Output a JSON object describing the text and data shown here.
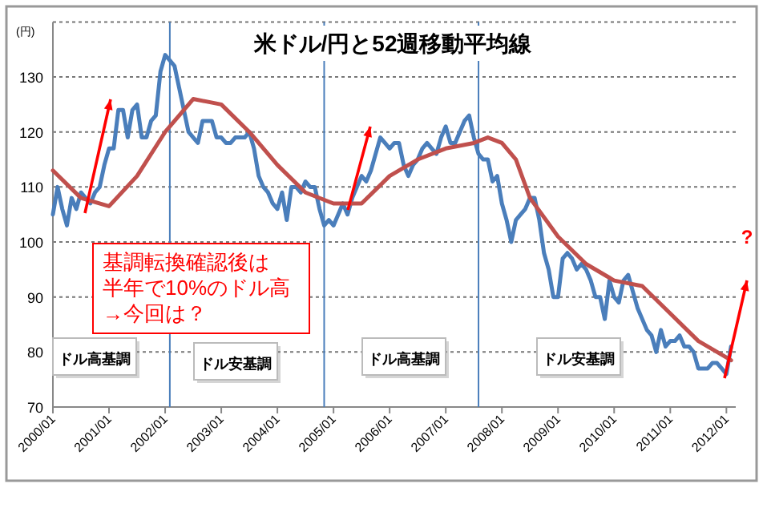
{
  "chart_data": {
    "type": "line",
    "title": "米ドル/円と52週移動平均線",
    "ylabel": "(円)",
    "xlim": [
      "2000-01",
      "2012-03"
    ],
    "ylim": [
      70,
      140
    ],
    "xticks": [
      {
        "value": "2000-01",
        "label": "2000/01"
      },
      {
        "value": "2001-01",
        "label": "2001/01"
      },
      {
        "value": "2002-01",
        "label": "2002/01"
      },
      {
        "value": "2003-01",
        "label": "2003/01"
      },
      {
        "value": "2004-01",
        "label": "2004/01"
      },
      {
        "value": "2005-01",
        "label": "2005/01"
      },
      {
        "value": "2006-01",
        "label": "2006/01"
      },
      {
        "value": "2007-01",
        "label": "2007/01"
      },
      {
        "value": "2008-01",
        "label": "2008/01"
      },
      {
        "value": "2009-01",
        "label": "2009/01"
      },
      {
        "value": "2010-01",
        "label": "2010/01"
      },
      {
        "value": "2011-01",
        "label": "2011/01"
      },
      {
        "value": "2012-01",
        "label": "2012/01"
      }
    ],
    "yticks": [
      70,
      80,
      90,
      100,
      110,
      120,
      130,
      {
        "value": 140,
        "label": null
      }
    ],
    "grid": "y",
    "line_style": "solid",
    "marker": "none",
    "series": [
      {
        "color": "#4a7ebb",
        "x": [
          "2000-01",
          "2000-02",
          "2000-03",
          "2000-04",
          "2000-05",
          "2000-06",
          "2000-07",
          "2000-08",
          "2000-09",
          "2000-10",
          "2000-11",
          "2000-12",
          "2001-01",
          "2001-02",
          "2001-03",
          "2001-04",
          "2001-05",
          "2001-06",
          "2001-07",
          "2001-08",
          "2001-09",
          "2001-10",
          "2001-11",
          "2001-12",
          "2002-01",
          "2002-02",
          "2002-03",
          "2002-04",
          "2002-05",
          "2002-06",
          "2002-07",
          "2002-08",
          "2002-09",
          "2002-10",
          "2002-11",
          "2002-12",
          "2003-01",
          "2003-02",
          "2003-03",
          "2003-04",
          "2003-05",
          "2003-06",
          "2003-07",
          "2003-08",
          "2003-09",
          "2003-10",
          "2003-11",
          "2003-12",
          "2004-01",
          "2004-02",
          "2004-03",
          "2004-04",
          "2004-05",
          "2004-06",
          "2004-07",
          "2004-08",
          "2004-09",
          "2004-10",
          "2004-11",
          "2004-12",
          "2005-01",
          "2005-02",
          "2005-03",
          "2005-04",
          "2005-05",
          "2005-06",
          "2005-07",
          "2005-08",
          "2005-09",
          "2005-10",
          "2005-11",
          "2005-12",
          "2006-01",
          "2006-02",
          "2006-03",
          "2006-04",
          "2006-05",
          "2006-06",
          "2006-07",
          "2006-08",
          "2006-09",
          "2006-10",
          "2006-11",
          "2006-12",
          "2007-01",
          "2007-02",
          "2007-03",
          "2007-04",
          "2007-05",
          "2007-06",
          "2007-07",
          "2007-08",
          "2007-09",
          "2007-10",
          "2007-11",
          "2007-12",
          "2008-01",
          "2008-02",
          "2008-03",
          "2008-04",
          "2008-05",
          "2008-06",
          "2008-07",
          "2008-08",
          "2008-09",
          "2008-10",
          "2008-11",
          "2008-12",
          "2009-01",
          "2009-02",
          "2009-03",
          "2009-04",
          "2009-05",
          "2009-06",
          "2009-07",
          "2009-08",
          "2009-09",
          "2009-10",
          "2009-11",
          "2009-12",
          "2010-01",
          "2010-02",
          "2010-03",
          "2010-04",
          "2010-05",
          "2010-06",
          "2010-07",
          "2010-08",
          "2010-09",
          "2010-10",
          "2010-11",
          "2010-12",
          "2011-01",
          "2011-02",
          "2011-03",
          "2011-04",
          "2011-05",
          "2011-06",
          "2011-07",
          "2011-08",
          "2011-09",
          "2011-10",
          "2011-11",
          "2011-12",
          "2012-01",
          "2012-02"
        ],
        "values": [
          105,
          110,
          106,
          103,
          108,
          106,
          109,
          108,
          107,
          109,
          110,
          114,
          117,
          117,
          124,
          124,
          119,
          124,
          125,
          119,
          119,
          122,
          123,
          131,
          134,
          133,
          132,
          128,
          124,
          120,
          119,
          118,
          122,
          122,
          122,
          119,
          119,
          118,
          118,
          119,
          119,
          119,
          120,
          117,
          112,
          110,
          109,
          107,
          106,
          109,
          104,
          110,
          110,
          109,
          111,
          110,
          110,
          106,
          103,
          104,
          103,
          105,
          107,
          105,
          108,
          110,
          112,
          111,
          113,
          116,
          119,
          118,
          117,
          118,
          118,
          114,
          112,
          114,
          115,
          117,
          118,
          117,
          116,
          119,
          121,
          118,
          118,
          120,
          122,
          123,
          119,
          116,
          115,
          115,
          111,
          112,
          107,
          104,
          100,
          104,
          105,
          106,
          108,
          108,
          104,
          98,
          95,
          90,
          90,
          97,
          98,
          97,
          95,
          96,
          95,
          93,
          90,
          90,
          86,
          93,
          90,
          89,
          93,
          94,
          91,
          88,
          86,
          84,
          83,
          80,
          84,
          81,
          82,
          82,
          83,
          81,
          81,
          80,
          77,
          77,
          77,
          78,
          78,
          77,
          76,
          81
        ]
      },
      {
        "color": "#c0504d",
        "x": [
          "2000-01",
          "2000-07",
          "2001-01",
          "2001-07",
          "2002-01",
          "2002-07",
          "2003-01",
          "2003-07",
          "2004-01",
          "2004-07",
          "2005-01",
          "2005-07",
          "2006-01",
          "2006-07",
          "2007-01",
          "2007-07",
          "2007-10",
          "2008-01",
          "2008-04",
          "2008-07",
          "2009-01",
          "2009-07",
          "2010-01",
          "2010-07",
          "2011-01",
          "2011-07",
          "2012-01",
          "2012-02"
        ],
        "values": [
          113,
          108,
          106.5,
          112,
          120,
          126,
          125,
          120,
          114,
          109,
          107,
          107,
          112,
          115,
          117,
          118,
          119,
          118,
          115,
          108,
          101,
          96,
          93,
          92,
          87,
          82,
          79,
          78.5
        ]
      }
    ],
    "ref_lines": [
      {
        "axis": "x",
        "value": "2002-02",
        "color": "#4a7ebb"
      },
      {
        "axis": "x",
        "value": "2004-11",
        "color": "#4a7ebb"
      },
      {
        "axis": "x",
        "value": "2007-08",
        "color": "#4a7ebb"
      }
    ],
    "annotations": [
      "基調転換確認後は",
      "半年で10%のドル高",
      "→今回は？",
      "ドル高基調",
      "ドル安基調",
      "ドル高基調",
      "ドル安基調",
      "?"
    ]
  }
}
